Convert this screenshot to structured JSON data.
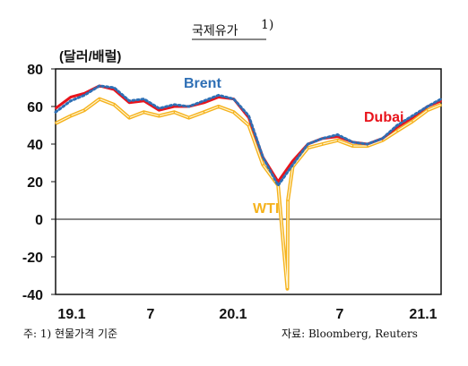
{
  "chart_data": {
    "type": "line",
    "title": "국제유가",
    "title_footnote": "1)",
    "ylabel": "(달러/배럴)",
    "ylim": [
      -40,
      80
    ],
    "yticks": [
      "80",
      "60",
      "40",
      "20",
      "0",
      "-20",
      "-40"
    ],
    "xtick_labels": [
      "19.1",
      "7",
      "20.1",
      "7",
      "21.1"
    ],
    "xlim": [
      "2019-01",
      "2021-03"
    ],
    "zero_line": true,
    "grid": false,
    "series": [
      {
        "name": "Brent",
        "color": "#2e6fb5",
        "style": "dotted",
        "x": [
          "2019-01",
          "2019-02",
          "2019-03",
          "2019-04",
          "2019-05",
          "2019-06",
          "2019-07",
          "2019-08",
          "2019-09",
          "2019-10",
          "2019-11",
          "2019-12",
          "2020-01",
          "2020-02",
          "2020-03",
          "2020-04",
          "2020-05",
          "2020-06",
          "2020-07",
          "2020-08",
          "2020-09",
          "2020-10",
          "2020-11",
          "2020-12",
          "2021-01",
          "2021-02",
          "2021-03"
        ],
        "values": [
          57,
          63,
          66,
          71,
          70,
          63,
          64,
          59,
          61,
          60,
          63,
          66,
          64,
          55,
          33,
          18,
          29,
          40,
          43,
          45,
          41,
          40,
          43,
          50,
          55,
          60,
          64
        ]
      },
      {
        "name": "Dubai",
        "color": "#e8131b",
        "style": "solid",
        "x": [
          "2019-01",
          "2019-02",
          "2019-03",
          "2019-04",
          "2019-05",
          "2019-06",
          "2019-07",
          "2019-08",
          "2019-09",
          "2019-10",
          "2019-11",
          "2019-12",
          "2020-01",
          "2020-02",
          "2020-03",
          "2020-04",
          "2020-05",
          "2020-06",
          "2020-07",
          "2020-08",
          "2020-09",
          "2020-10",
          "2020-11",
          "2020-12",
          "2021-01",
          "2021-02",
          "2021-03"
        ],
        "values": [
          59,
          65,
          67,
          71,
          69,
          62,
          63,
          58,
          60,
          60,
          62,
          65,
          64,
          54,
          33,
          20,
          31,
          40,
          43,
          44,
          41,
          40,
          43,
          49,
          54,
          60,
          63
        ]
      },
      {
        "name": "WTI",
        "color": "#f5b21c",
        "style": "double",
        "x": [
          "2019-01",
          "2019-02",
          "2019-03",
          "2019-04",
          "2019-05",
          "2019-06",
          "2019-07",
          "2019-08",
          "2019-09",
          "2019-10",
          "2019-11",
          "2019-12",
          "2020-01",
          "2020-02",
          "2020-03",
          "2020-04",
          "2020-04-20",
          "2020-04-21",
          "2020-05",
          "2020-06",
          "2020-07",
          "2020-08",
          "2020-09",
          "2020-10",
          "2020-11",
          "2020-12",
          "2021-01",
          "2021-02",
          "2021-03"
        ],
        "values": [
          51,
          55,
          58,
          64,
          61,
          54,
          57,
          55,
          57,
          54,
          57,
          60,
          57,
          50,
          29,
          18,
          -37,
          10,
          28,
          38,
          40,
          42,
          39,
          39,
          42,
          47,
          52,
          58,
          61
        ]
      }
    ]
  },
  "notes": {
    "left": "주: 1) 현물가격 기준",
    "right": "자료: Bloomberg, Reuters"
  }
}
